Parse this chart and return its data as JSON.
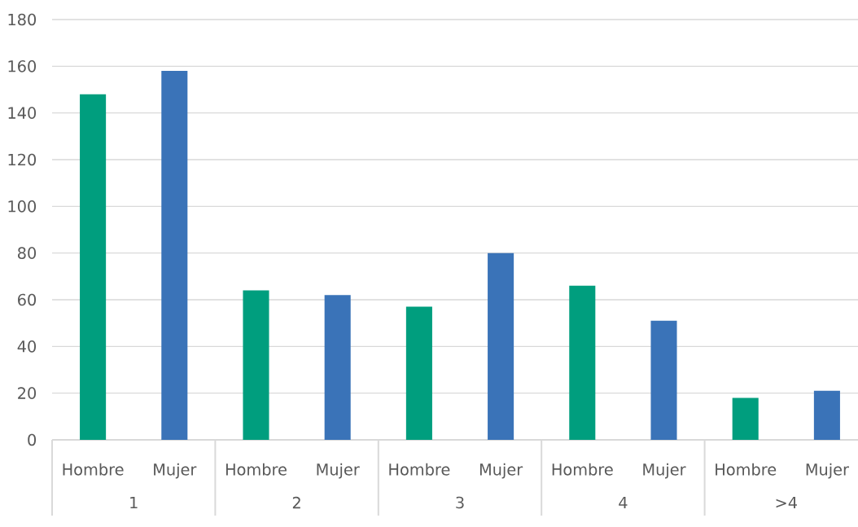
{
  "chart_data": {
    "type": "bar",
    "categories": [
      "1",
      "2",
      "3",
      "4",
      ">4"
    ],
    "series": [
      {
        "name": "Hombre",
        "color": "#009e7e",
        "values": [
          148,
          64,
          57,
          66,
          18
        ]
      },
      {
        "name": "Mujer",
        "color": "#3a73b8",
        "values": [
          158,
          62,
          80,
          51,
          21
        ]
      }
    ],
    "ylim": [
      0,
      180
    ],
    "yticks": [
      0,
      20,
      40,
      60,
      80,
      100,
      120,
      140,
      160,
      180
    ],
    "grid": "y",
    "legend": false
  }
}
